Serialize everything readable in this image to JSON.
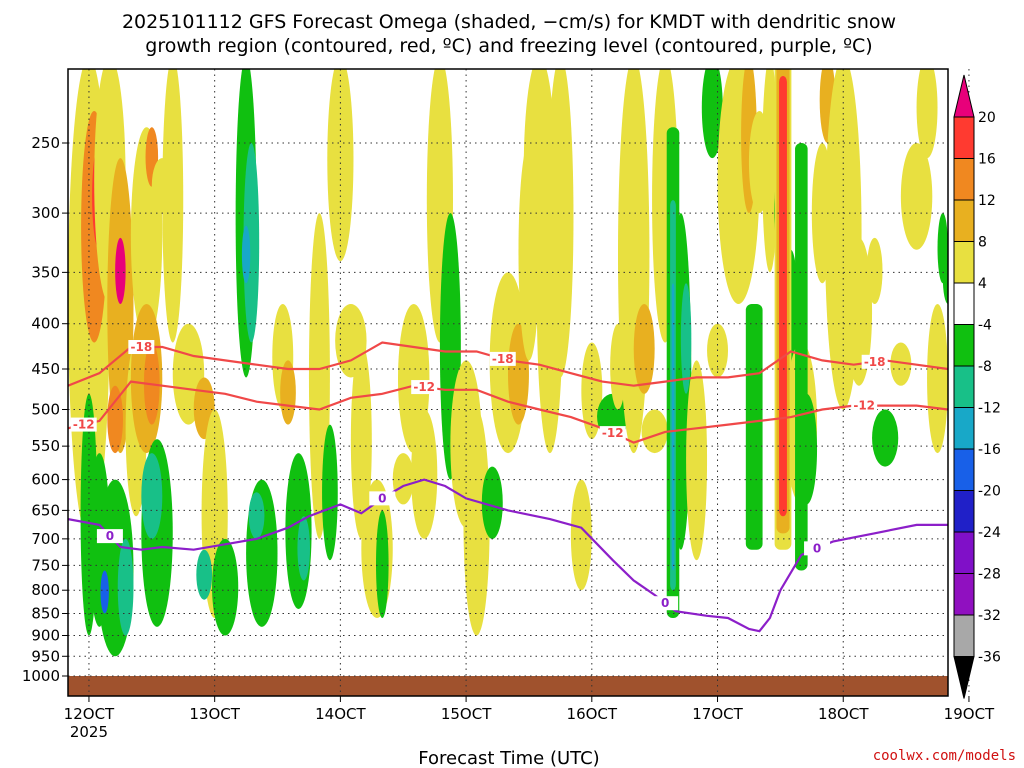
{
  "title": {
    "line1": "2025101112 GFS Forecast Omega (shaded, −cm/s) for KMDT with dendritic snow",
    "line2": "growth region (contoured, red, ºC) and freezing level (contoured, purple, ºC)"
  },
  "credit": "coolwx.com/models",
  "chart_data": {
    "type": "heatmap",
    "xlabel": "Forecast Time (UTC)",
    "x_ticks": [
      "12OCT",
      "13OCT",
      "14OCT",
      "15OCT",
      "16OCT",
      "17OCT",
      "18OCT",
      "19OCT"
    ],
    "x_tick_sublabel": "2025",
    "x_range_hours": [
      -4,
      164
    ],
    "y_ticks": [
      250,
      300,
      350,
      400,
      450,
      500,
      550,
      600,
      650,
      700,
      750,
      800,
      850,
      900,
      950,
      1000
    ],
    "y_range_hpa": [
      200,
      1000
    ],
    "y_scale": "log-pressure",
    "grid": "dotted",
    "colorbar": {
      "labels": [
        "20",
        "16",
        "12",
        "8",
        "4",
        "-4",
        "-8",
        "-12",
        "-16",
        "-20",
        "-24",
        "-28",
        "-32",
        "-36"
      ],
      "colors": [
        "#e8007a",
        "#ff3a30",
        "#f08820",
        "#e8b020",
        "#e8e040",
        "#ffffff",
        "#10c010",
        "#18c088",
        "#18a8c8",
        "#1860e8",
        "#2020c8",
        "#8010c8",
        "#9010c0",
        "#a8a8a8",
        "#000000"
      ]
    },
    "contour_levels_red": [
      "-18",
      "-12"
    ],
    "contour_levels_purple": [
      "0"
    ],
    "series": [
      {
        "name": "-18",
        "color": "#f04848",
        "x": [
          -4,
          2,
          8,
          14,
          20,
          26,
          32,
          38,
          44,
          50,
          56,
          62,
          68,
          74,
          80,
          86,
          92,
          98,
          104,
          110,
          116,
          122,
          128,
          134,
          140,
          146,
          152,
          158,
          164
        ],
        "y": [
          470,
          455,
          425,
          425,
          435,
          440,
          445,
          450,
          450,
          440,
          420,
          425,
          430,
          430,
          440,
          445,
          455,
          465,
          470,
          465,
          460,
          460,
          455,
          430,
          440,
          445,
          440,
          445,
          450
        ]
      },
      {
        "name": "-12",
        "color": "#f04848",
        "x": [
          -4,
          2,
          8,
          14,
          20,
          26,
          32,
          38,
          44,
          50,
          56,
          62,
          68,
          74,
          80,
          86,
          92,
          98,
          104,
          110,
          116,
          122,
          128,
          134,
          140,
          146,
          152,
          158,
          164
        ],
        "y": [
          525,
          515,
          465,
          470,
          475,
          480,
          490,
          495,
          500,
          485,
          480,
          470,
          475,
          475,
          490,
          500,
          510,
          525,
          545,
          530,
          525,
          520,
          515,
          510,
          500,
          495,
          495,
          495,
          500
        ]
      },
      {
        "name": "0",
        "color": "#8c1fc9",
        "x": [
          -4,
          2,
          6,
          10,
          14,
          20,
          26,
          32,
          38,
          42,
          48,
          52,
          56,
          60,
          64,
          68,
          72,
          80,
          88,
          94,
          100,
          104,
          108,
          112,
          118,
          122,
          126,
          128,
          130,
          132,
          136,
          142,
          150,
          158,
          164
        ],
        "y": [
          665,
          675,
          715,
          720,
          715,
          720,
          710,
          700,
          680,
          660,
          640,
          655,
          630,
          610,
          600,
          610,
          630,
          650,
          665,
          680,
          740,
          780,
          810,
          845,
          855,
          860,
          885,
          890,
          860,
          800,
          730,
          705,
          690,
          675,
          675
        ]
      }
    ]
  }
}
